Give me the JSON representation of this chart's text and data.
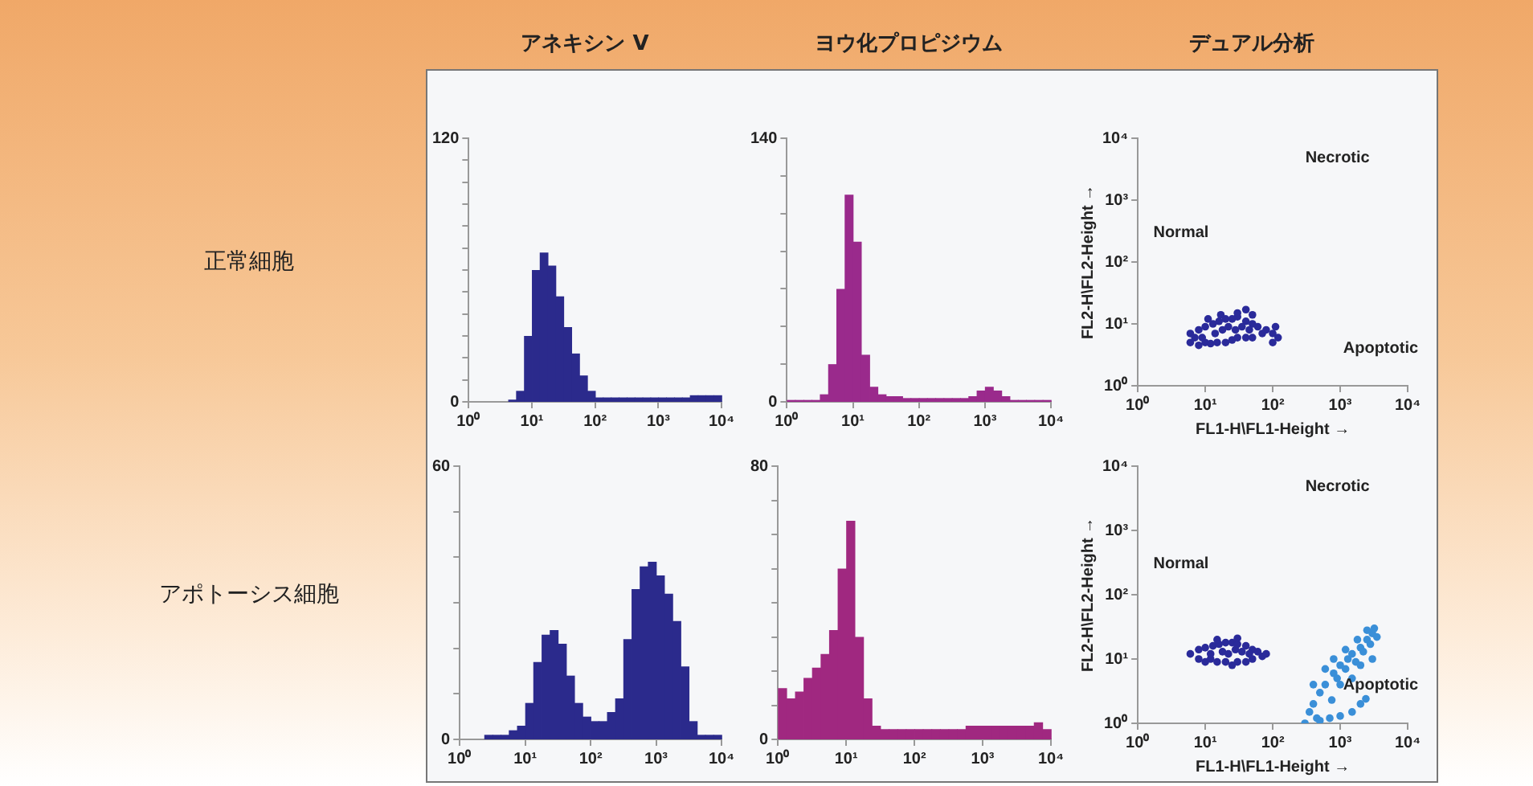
{
  "chart_data": [
    {
      "type": "histogram",
      "title": "アネキシン V",
      "annotations": [
        "正常細胞"
      ],
      "color": "#2b2a8c",
      "log": "x",
      "grid": false,
      "bins": [
        1,
        1.33,
        1.78,
        2.37,
        3.16,
        4.22,
        5.62,
        7.5,
        10,
        13.3,
        17.8,
        23.7,
        31.6,
        42.2,
        56.2,
        75,
        100,
        133,
        178,
        237,
        316,
        422,
        562,
        750,
        1000,
        1330,
        1780,
        2370,
        3160,
        4220,
        5620,
        7500,
        10000
      ],
      "values": [
        0,
        0,
        0,
        0,
        0,
        1,
        5,
        30,
        60,
        68,
        62,
        48,
        34,
        22,
        12,
        5,
        2,
        2,
        2,
        2,
        2,
        2,
        2,
        2,
        2,
        2,
        2,
        2,
        3,
        3,
        3,
        3
      ],
      "xlim": [
        1,
        10000
      ],
      "xticks": [
        {
          "value": 1,
          "label": "10⁰"
        },
        {
          "value": 10,
          "label": "10¹"
        },
        {
          "value": 100,
          "label": "10²"
        },
        {
          "value": 1000,
          "label": "10³"
        },
        {
          "value": 10000,
          "label": "10⁴"
        }
      ],
      "ylim": [
        0,
        120
      ],
      "yticks": [
        0,
        {
          "value": 10,
          "label": null
        },
        {
          "value": 20,
          "label": null
        },
        {
          "value": 30,
          "label": null
        },
        {
          "value": 40,
          "label": null
        },
        {
          "value": 50,
          "label": null
        },
        {
          "value": 60,
          "label": null
        },
        {
          "value": 70,
          "label": null
        },
        {
          "value": 80,
          "label": null
        },
        {
          "value": 90,
          "label": null
        },
        {
          "value": 100,
          "label": null
        },
        {
          "value": 110,
          "label": null
        },
        120
      ]
    },
    {
      "type": "histogram",
      "title": "ヨウ化プロピジウム",
      "color": "#9a2a8c",
      "log": "x",
      "grid": false,
      "bins": [
        1,
        1.33,
        1.78,
        2.37,
        3.16,
        4.22,
        5.62,
        7.5,
        10,
        13.3,
        17.8,
        23.7,
        31.6,
        42.2,
        56.2,
        75,
        100,
        133,
        178,
        237,
        316,
        422,
        562,
        750,
        1000,
        1330,
        1780,
        2370,
        3160,
        4220,
        5620,
        7500,
        10000
      ],
      "values": [
        1,
        1,
        1,
        1,
        4,
        20,
        60,
        110,
        85,
        25,
        8,
        4,
        3,
        3,
        2,
        2,
        2,
        2,
        2,
        2,
        2,
        2,
        3,
        6,
        8,
        6,
        3,
        1,
        1,
        1,
        1,
        1
      ],
      "xlim": [
        1,
        10000
      ],
      "xticks": [
        {
          "value": 1,
          "label": "10⁰"
        },
        {
          "value": 10,
          "label": "10¹"
        },
        {
          "value": 100,
          "label": "10²"
        },
        {
          "value": 1000,
          "label": "10³"
        },
        {
          "value": 10000,
          "label": "10⁴"
        }
      ],
      "ylim": [
        0,
        140
      ],
      "yticks": [
        0,
        {
          "value": 20,
          "label": null
        },
        {
          "value": 40,
          "label": null
        },
        {
          "value": 60,
          "label": null
        },
        {
          "value": 80,
          "label": null
        },
        {
          "value": 100,
          "label": null
        },
        {
          "value": 120,
          "label": null
        },
        140
      ]
    },
    {
      "type": "histogram",
      "annotations": [
        "アポトーシス細胞"
      ],
      "color": "#2b2a8c",
      "log": "x",
      "grid": false,
      "bins": [
        1,
        1.33,
        1.78,
        2.37,
        3.16,
        4.22,
        5.62,
        7.5,
        10,
        13.3,
        17.8,
        23.7,
        31.6,
        42.2,
        56.2,
        75,
        100,
        133,
        178,
        237,
        316,
        422,
        562,
        750,
        1000,
        1330,
        1780,
        2370,
        3160,
        4220,
        5620,
        7500,
        10000
      ],
      "values": [
        0,
        0,
        0,
        1,
        1,
        1,
        2,
        3,
        8,
        17,
        23,
        24,
        21,
        14,
        8,
        5,
        4,
        4,
        6,
        9,
        22,
        33,
        38,
        39,
        36,
        32,
        26,
        16,
        4,
        1,
        1,
        1
      ],
      "xlim": [
        1,
        10000
      ],
      "xticks": [
        {
          "value": 1,
          "label": "10⁰"
        },
        {
          "value": 10,
          "label": "10¹"
        },
        {
          "value": 100,
          "label": "10²"
        },
        {
          "value": 1000,
          "label": "10³"
        },
        {
          "value": 10000,
          "label": "10⁴"
        }
      ],
      "ylim": [
        0,
        60
      ],
      "yticks": [
        0,
        {
          "value": 10,
          "label": null
        },
        {
          "value": 20,
          "label": null
        },
        {
          "value": 30,
          "label": null
        },
        {
          "value": 40,
          "label": null
        },
        {
          "value": 50,
          "label": null
        },
        60
      ]
    },
    {
      "type": "histogram",
      "color": "#a02880",
      "log": "x",
      "grid": false,
      "bins": [
        1,
        1.33,
        1.78,
        2.37,
        3.16,
        4.22,
        5.62,
        7.5,
        10,
        13.3,
        17.8,
        23.7,
        31.6,
        42.2,
        56.2,
        75,
        100,
        133,
        178,
        237,
        316,
        422,
        562,
        750,
        1000,
        1330,
        1780,
        2370,
        3160,
        4220,
        5620,
        7500,
        10000
      ],
      "values": [
        15,
        12,
        14,
        18,
        21,
        25,
        32,
        50,
        64,
        30,
        12,
        4,
        3,
        3,
        3,
        3,
        3,
        3,
        3,
        3,
        3,
        3,
        4,
        4,
        4,
        4,
        4,
        4,
        4,
        4,
        5,
        3
      ],
      "xlim": [
        1,
        10000
      ],
      "xticks": [
        {
          "value": 1,
          "label": "10⁰"
        },
        {
          "value": 10,
          "label": "10¹"
        },
        {
          "value": 100,
          "label": "10²"
        },
        {
          "value": 1000,
          "label": "10³"
        },
        {
          "value": 10000,
          "label": "10⁴"
        }
      ],
      "ylim": [
        0,
        80
      ],
      "yticks": [
        0,
        {
          "value": 10,
          "label": null
        },
        {
          "value": 20,
          "label": null
        },
        {
          "value": 30,
          "label": null
        },
        {
          "value": 40,
          "label": null
        },
        {
          "value": 50,
          "label": null
        },
        {
          "value": 60,
          "label": null
        },
        {
          "value": 70,
          "label": null
        },
        80
      ]
    },
    {
      "type": "scatter",
      "title": "デュアル分析",
      "xlabel": "FL1-H\\FL1-Height →",
      "ylabel": "FL2-H\\FL2-Height →",
      "log": "xy",
      "grid": false,
      "marker": "circle",
      "annotations": [
        "Normal",
        "Necrotic",
        "Apoptotic"
      ],
      "series": [
        {
          "color": "#2a2a9a",
          "x": [
            6,
            8,
            10,
            12,
            15,
            20,
            25,
            30,
            40,
            50,
            70,
            100,
            120,
            6,
            8,
            10,
            13,
            16,
            20,
            25,
            30,
            40,
            50,
            60,
            80,
            9,
            14,
            18,
            22,
            28,
            35,
            45,
            11,
            17,
            30,
            40,
            100,
            110,
            7,
            50
          ],
          "values": [
            5,
            4.5,
            5,
            4.8,
            5,
            5,
            5.5,
            6,
            6,
            6,
            7,
            7,
            6,
            7,
            8,
            9,
            10,
            11,
            12,
            12,
            13,
            11,
            10,
            9,
            8,
            6,
            7,
            8,
            9,
            8,
            9,
            8,
            12,
            14,
            15,
            17,
            5,
            9,
            6,
            14
          ]
        }
      ],
      "xlim": [
        1,
        10000
      ],
      "xticks": [
        {
          "value": 1,
          "label": "10⁰"
        },
        {
          "value": 10,
          "label": "10¹"
        },
        {
          "value": 100,
          "label": "10²"
        },
        {
          "value": 1000,
          "label": "10³"
        },
        {
          "value": 10000,
          "label": "10⁴"
        }
      ],
      "ylim": [
        1,
        10000
      ],
      "yticks": [
        {
          "value": 1,
          "label": "10⁰"
        },
        {
          "value": 10,
          "label": "10¹"
        },
        {
          "value": 100,
          "label": "10²"
        },
        {
          "value": 1000,
          "label": "10³"
        },
        {
          "value": 10000,
          "label": "10⁴"
        }
      ]
    },
    {
      "type": "scatter",
      "xlabel": "FL1-H\\FL1-Height →",
      "ylabel": "FL2-H\\FL2-Height →",
      "log": "xy",
      "grid": false,
      "marker": "circle",
      "annotations": [
        "Normal",
        "Necrotic",
        "Apoptotic"
      ],
      "series": [
        {
          "color": "#2a2a9a",
          "x": [
            6,
            8,
            10,
            12,
            15,
            20,
            25,
            30,
            40,
            50,
            70,
            8,
            10,
            13,
            16,
            20,
            25,
            30,
            40,
            50,
            60,
            12,
            18,
            22,
            28,
            35,
            45,
            15,
            30,
            80
          ],
          "values": [
            12,
            10,
            9,
            10,
            9,
            9,
            8,
            9,
            9,
            10,
            11,
            14,
            15,
            16,
            17,
            18,
            18,
            17,
            16,
            14,
            13,
            12,
            13,
            12,
            14,
            13,
            12,
            20,
            21,
            12
          ]
        },
        {
          "color": "#3a8fd8",
          "x": [
            300,
            350,
            400,
            450,
            500,
            600,
            750,
            800,
            900,
            1000,
            1200,
            1300,
            1500,
            1700,
            2000,
            2200,
            2500,
            2800,
            3000,
            3500,
            3200,
            500,
            700,
            1000,
            1500,
            2000,
            2400,
            1000,
            1500,
            2000,
            3000,
            400,
            600,
            800,
            1200,
            1800,
            2500
          ],
          "values": [
            1,
            1.5,
            2,
            1.2,
            3,
            4,
            2.3,
            6,
            5,
            8,
            7,
            10,
            12,
            9,
            15,
            13,
            20,
            17,
            25,
            22,
            30,
            1.1,
            1.2,
            1.3,
            1.5,
            2,
            2.4,
            4,
            5,
            8,
            10,
            4,
            7,
            10,
            14,
            20,
            28
          ]
        }
      ],
      "xlim": [
        1,
        10000
      ],
      "xticks": [
        {
          "value": 1,
          "label": "10⁰"
        },
        {
          "value": 10,
          "label": "10¹"
        },
        {
          "value": 100,
          "label": "10²"
        },
        {
          "value": 1000,
          "label": "10³"
        },
        {
          "value": 10000,
          "label": "10⁴"
        }
      ],
      "ylim": [
        1,
        10000
      ],
      "yticks": [
        {
          "value": 1,
          "label": "10⁰"
        },
        {
          "value": 10,
          "label": "10¹"
        },
        {
          "value": 100,
          "label": "10²"
        },
        {
          "value": 1000,
          "label": "10³"
        },
        {
          "value": 10000,
          "label": "10⁴"
        }
      ]
    }
  ]
}
